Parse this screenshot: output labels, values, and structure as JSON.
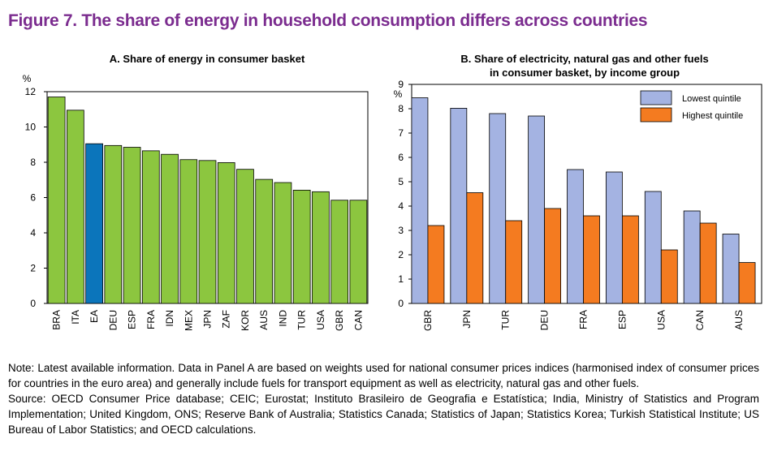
{
  "figure_title": "Figure  7. The share of energy in household consumption differs across countries",
  "chart_data": [
    {
      "type": "bar",
      "title": "A. Share of energy in consumer basket",
      "ylabel": "%",
      "ylim": [
        0,
        12
      ],
      "yticks": [
        0,
        2,
        4,
        6,
        8,
        10,
        12
      ],
      "categories": [
        "BRA",
        "ITA",
        "EA",
        "DEU",
        "ESP",
        "FRA",
        "IDN",
        "MEX",
        "JPN",
        "ZAF",
        "KOR",
        "AUS",
        "IND",
        "TUR",
        "USA",
        "GBR",
        "CAN"
      ],
      "values": [
        11.7,
        10.95,
        9.05,
        8.95,
        8.85,
        8.65,
        8.45,
        8.15,
        8.1,
        7.98,
        7.6,
        7.03,
        6.85,
        6.42,
        6.33,
        5.85,
        5.85
      ],
      "colors": {
        "default": "#8cc63f",
        "highlight": "#0b75bb",
        "highlight_category": "EA"
      }
    },
    {
      "type": "bar",
      "title": "B. Share of electricity, natural gas and other fuels in consumer basket, by income group",
      "title_lines": [
        "B. Share of electricity, natural gas and other fuels",
        "in consumer basket, by income group"
      ],
      "ylabel": "%",
      "ylim": [
        0,
        9
      ],
      "yticks": [
        0,
        1,
        2,
        3,
        4,
        5,
        6,
        7,
        8,
        9
      ],
      "categories": [
        "GBR",
        "JPN",
        "TUR",
        "DEU",
        "FRA",
        "ESP",
        "USA",
        "CAN",
        "AUS"
      ],
      "series": [
        {
          "name": "Lowest quintile",
          "color": "#a4b3e2",
          "values": [
            8.45,
            8.02,
            7.8,
            7.7,
            5.5,
            5.4,
            4.6,
            3.8,
            2.85
          ]
        },
        {
          "name": "Highest quintile",
          "color": "#f47b20",
          "values": [
            3.2,
            4.55,
            3.4,
            3.9,
            3.6,
            3.6,
            2.2,
            3.3,
            1.68
          ]
        }
      ],
      "legend_position": "top-right"
    }
  ],
  "notes": {
    "note": "Note: Latest available information. Data in Panel A are based on weights used for national consumer prices indices (harmonised index of consumer prices for countries in the euro area) and generally include fuels for transport equipment as well as electricity, natural gas and other fuels.",
    "source": "Source: OECD Consumer Price database; CEIC; Eurostat; Instituto Brasileiro de Geografia e Estatística; India, Ministry of Statistics and Program Implementation; United Kingdom, ONS; Reserve Bank of Australia; Statistics Canada; Statistics of Japan; Statistics Korea; Turkish Statistical Institute; US Bureau of Labor Statistics; and OECD calculations."
  }
}
